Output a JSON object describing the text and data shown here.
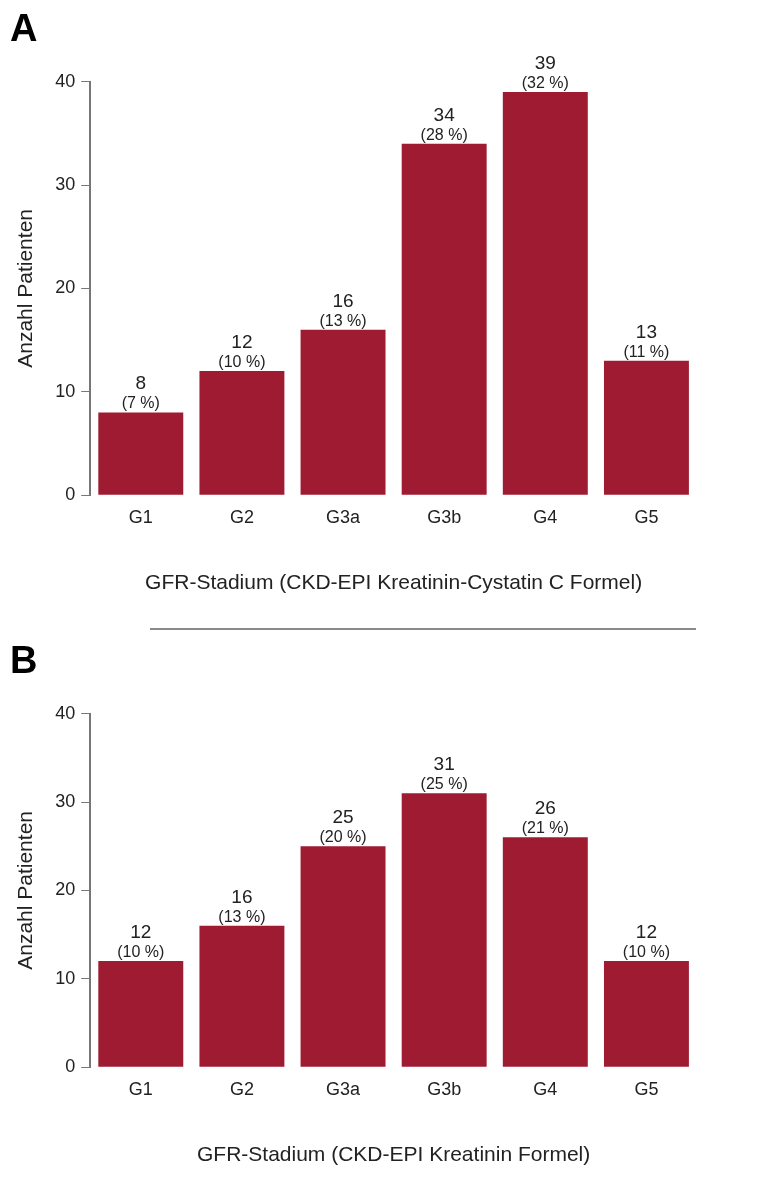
{
  "chart_data": [
    {
      "type": "bar",
      "title": "A",
      "xlabel": "GFR-Stadium (CKD-EPI Kreatinin-Cystatin C Formel)",
      "ylabel": "Anzahl Patienten",
      "categories": [
        "G1",
        "G2",
        "G3a",
        "G3b",
        "G4",
        "G5"
      ],
      "values": [
        8,
        12,
        16,
        34,
        39,
        13
      ],
      "color": "#9e1b32",
      "value_labels": [
        "8\n(7 %)",
        "12\n(10 %)",
        "16\n(13 %)",
        "34\n(28 %)",
        "39\n(32 %)",
        "13\n(11 %)"
      ],
      "ylim": [
        0,
        40
      ],
      "yticks": [
        0,
        10,
        20,
        30,
        40
      ],
      "grid": false,
      "legend": false
    },
    {
      "type": "bar",
      "title": "B",
      "xlabel": "GFR-Stadium (CKD-EPI Kreatinin Formel)",
      "ylabel": "Anzahl Patienten",
      "categories": [
        "G1",
        "G2",
        "G3a",
        "G3b",
        "G4",
        "G5"
      ],
      "values": [
        12,
        16,
        25,
        31,
        26,
        12
      ],
      "color": "#9e1b32",
      "value_labels": [
        "12\n(10 %)",
        "16\n(13 %)",
        "25\n(20 %)",
        "31\n(25 %)",
        "26\n(21 %)",
        "12\n(10 %)"
      ],
      "ylim": [
        0,
        40
      ],
      "yticks": [
        0,
        10,
        20,
        30,
        40
      ],
      "grid": false,
      "legend": false
    }
  ]
}
